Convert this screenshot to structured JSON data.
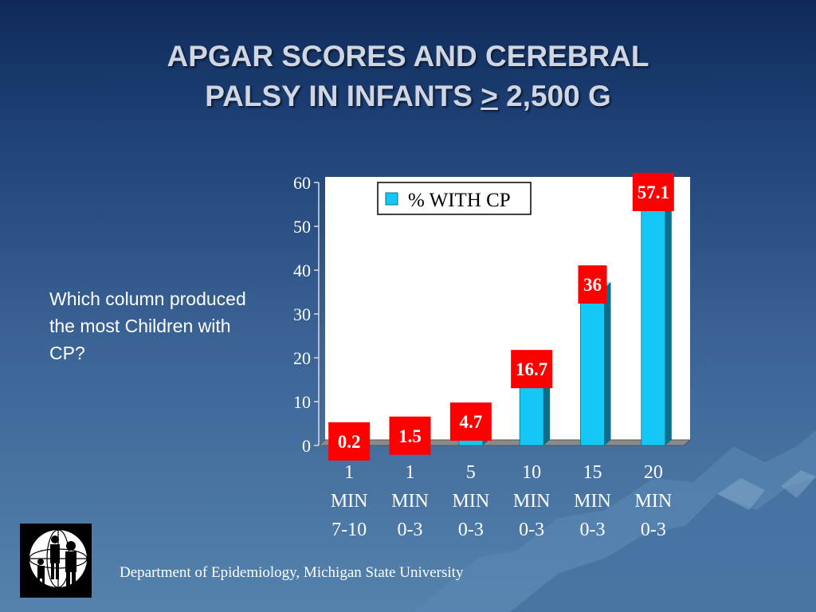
{
  "slide": {
    "title_line1": "APGAR SCORES AND CEREBRAL",
    "title_line2_pre": "PALSY IN INFANTS ",
    "title_line2_sym": ">",
    "title_line2_post": " 2,500 G",
    "question": "Which column produced the most Children with CP?",
    "footer": "Department of Epidemiology, Michigan State University"
  },
  "colors": {
    "bar": "#13c8f4",
    "bar_side": "#0a6f8c",
    "label_box": "#ff0000",
    "background_top": "#0f2a5a",
    "background_bottom": "#5582ad"
  },
  "logo_icon": "family-globe-icon",
  "chart_data": {
    "type": "bar",
    "categories": [
      [
        "1",
        "MIN",
        "7-10"
      ],
      [
        "1",
        "MIN",
        "0-3"
      ],
      [
        "5",
        "MIN",
        "0-3"
      ],
      [
        "10",
        "MIN",
        "0-3"
      ],
      [
        "15",
        "MIN",
        "0-3"
      ],
      [
        "20",
        "MIN",
        "0-3"
      ]
    ],
    "series": [
      {
        "name": "% WITH CP",
        "values": [
          0.2,
          1.5,
          4.7,
          16.7,
          36,
          57.1
        ]
      }
    ],
    "data_labels": [
      "0.2",
      "1.5",
      "4.7",
      "16.7",
      "36",
      "57.1"
    ],
    "yticks": [
      0,
      10,
      20,
      30,
      40,
      50,
      60
    ],
    "ylim": [
      0,
      60
    ],
    "legend": "top-center",
    "grid": false
  }
}
